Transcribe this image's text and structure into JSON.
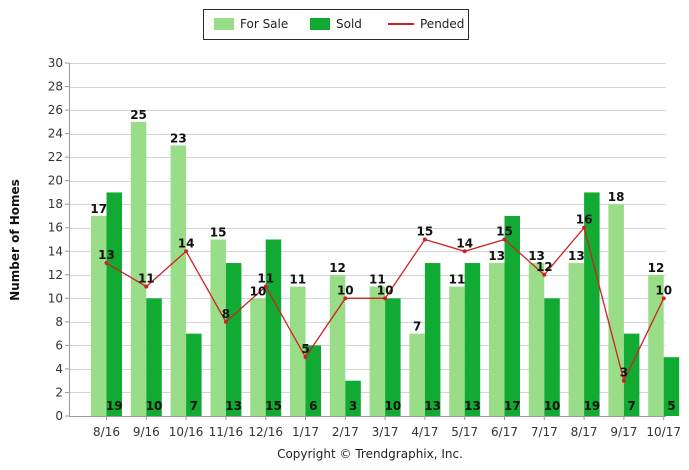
{
  "chart_data": {
    "type": "bar",
    "categories": [
      "8/16",
      "9/16",
      "10/16",
      "11/16",
      "12/16",
      "1/17",
      "2/17",
      "3/17",
      "4/17",
      "5/17",
      "6/17",
      "7/17",
      "8/17",
      "9/17",
      "10/17"
    ],
    "series": [
      {
        "name": "For Sale",
        "type": "bar",
        "color": "#99dd88",
        "values": [
          17,
          25,
          23,
          15,
          10,
          11,
          12,
          11,
          7,
          11,
          13,
          13,
          13,
          18,
          12
        ]
      },
      {
        "name": "Sold",
        "type": "bar",
        "color": "#11aa33",
        "values": [
          19,
          10,
          7,
          13,
          15,
          6,
          3,
          10,
          13,
          13,
          17,
          10,
          19,
          7,
          5
        ]
      },
      {
        "name": "Pended",
        "type": "line",
        "color": "#cc2222",
        "values": [
          13,
          11,
          14,
          8,
          11,
          5,
          10,
          10,
          15,
          14,
          15,
          12,
          16,
          3,
          10
        ]
      }
    ],
    "ylabel": "Number of Homes",
    "xlabel": "",
    "ylim": [
      0,
      30
    ],
    "yticks": [
      0,
      2,
      4,
      6,
      8,
      10,
      12,
      14,
      16,
      18,
      20,
      22,
      24,
      26,
      28,
      30
    ],
    "grid": true,
    "legend_position": "top-center"
  },
  "footer": {
    "copyright": "Copyright © Trendgraphix, Inc."
  }
}
